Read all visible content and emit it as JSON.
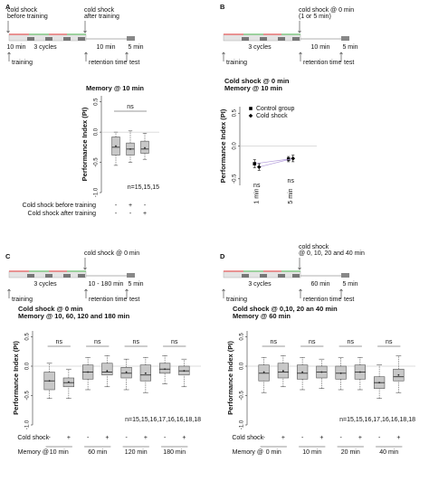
{
  "panel_labels": [
    "A",
    "B",
    "C",
    "D"
  ],
  "timelines": [
    {
      "shocks": [
        [
          "cold shock",
          "before training"
        ],
        [
          "cold shock",
          "after training"
        ]
      ],
      "durations": [
        "10 min",
        "3 cycles",
        "10 min",
        "5 min"
      ],
      "phases": [
        "training",
        "retention time",
        "test"
      ]
    },
    {
      "shocks": [
        [
          "cold shock @ 0 min",
          "(1 or 5 min)"
        ]
      ],
      "durations": [
        "3 cycles",
        "10 min",
        "5 min"
      ],
      "phases": [
        "training",
        "retention time",
        "test"
      ]
    },
    {
      "shocks": [
        [
          "cold shock @ 0 min"
        ]
      ],
      "durations": [
        "3 cycles",
        "10 - 180 min",
        "5 min"
      ],
      "phases": [
        "training",
        "retention time",
        "test"
      ]
    },
    {
      "shocks": [
        [
          "cold shock",
          "@ 0, 10, 20 and 40 min"
        ]
      ],
      "durations": [
        "3 cycles",
        "60 min",
        "5 min"
      ],
      "phases": [
        "training",
        "retention time",
        "test"
      ]
    }
  ],
  "chart_data": [
    {
      "type": "box",
      "title": [
        "Memory @ 10 min"
      ],
      "y_label": "Performance Index (PI)",
      "color": "#c8c8c8",
      "ylim": [
        -1,
        0.6
      ],
      "yticks": [
        {
          "value": -1,
          "label": "-1.0"
        },
        -0.5,
        {
          "value": 0,
          "label": "0.0"
        },
        0.5
      ],
      "boxes": [
        {
          "min": -0.55,
          "q1": -0.38,
          "median": -0.25,
          "q3": -0.08,
          "max": 0.0,
          "mean": -0.23
        },
        {
          "min": -0.5,
          "q1": -0.38,
          "median": -0.28,
          "q3": -0.18,
          "max": 0.02,
          "mean": -0.28
        },
        {
          "min": -0.45,
          "q1": -0.35,
          "median": -0.28,
          "q3": -0.15,
          "max": -0.02,
          "mean": -0.26
        }
      ],
      "significance": [
        "ns"
      ],
      "n_label": "n=15,15,15",
      "conditions": [
        {
          "name": "Cold shock before training",
          "values": [
            "-",
            "+",
            "-"
          ]
        },
        {
          "name": "Cold shock after training",
          "values": [
            "-",
            "-",
            "+"
          ]
        }
      ]
    },
    {
      "type": "line",
      "title": [
        "Cold shock @ 0 min",
        "Memory @ 10 min"
      ],
      "y_label": "Performance Index (PI)",
      "line_color": "#b39ddb",
      "ylim": [
        -0.6,
        0.6
      ],
      "yticks": [
        -0.5,
        {
          "value": 0,
          "label": "0.0"
        },
        0.5
      ],
      "categories": [
        "1 min",
        "5 min"
      ],
      "series": [
        {
          "name": "Control group",
          "color": "#000000",
          "marker": "square",
          "values": [
            -0.27,
            -0.2
          ],
          "errors": [
            0.06,
            0.04
          ]
        },
        {
          "name": "Cold shock",
          "color": "#000000",
          "marker": "diamond",
          "values": [
            -0.32,
            -0.19
          ],
          "errors": [
            0.05,
            0.05
          ]
        }
      ],
      "significance": [
        "ns",
        "ns"
      ]
    },
    {
      "type": "box",
      "title": [
        "Cold shock @ 0 min",
        "Memory @ 10, 60, 120 and 180 min"
      ],
      "y_label": "Performance Index (PI)",
      "color": "#c8c8c8",
      "ylim": [
        -1,
        0.6
      ],
      "yticks": [
        {
          "value": -1,
          "label": "-1.0"
        },
        -0.5,
        {
          "value": 0,
          "label": "0.0"
        },
        0.5
      ],
      "boxes": [
        {
          "min": -0.55,
          "q1": -0.4,
          "median": -0.25,
          "q3": -0.1,
          "max": 0.05,
          "mean": -0.25
        },
        {
          "min": -0.55,
          "q1": -0.35,
          "median": -0.28,
          "q3": -0.2,
          "max": -0.05,
          "mean": -0.27
        },
        {
          "min": -0.4,
          "q1": -0.22,
          "median": -0.1,
          "q3": 0.02,
          "max": 0.15,
          "mean": -0.1
        },
        {
          "min": -0.35,
          "q1": -0.15,
          "median": -0.1,
          "q3": 0.05,
          "max": 0.18,
          "mean": -0.08
        },
        {
          "min": -0.4,
          "q1": -0.2,
          "median": -0.12,
          "q3": -0.02,
          "max": 0.12,
          "mean": -0.1
        },
        {
          "min": -0.45,
          "q1": -0.25,
          "median": -0.15,
          "q3": 0.02,
          "max": 0.15,
          "mean": -0.12
        },
        {
          "min": -0.3,
          "q1": -0.12,
          "median": -0.05,
          "q3": 0.05,
          "max": 0.18,
          "mean": -0.05
        },
        {
          "min": -0.35,
          "q1": -0.15,
          "median": -0.08,
          "q3": 0.0,
          "max": 0.12,
          "mean": -0.08
        }
      ],
      "significance": [
        "ns",
        "ns",
        "ns",
        "ns"
      ],
      "n_label": "n=15,15,16,17,16,16,18,18",
      "conditions": [
        {
          "name": "Cold shock",
          "values": [
            "-",
            "+",
            "-",
            "+",
            "-",
            "+",
            "-",
            "+"
          ]
        }
      ],
      "group_label": "Memory @",
      "groups": [
        "10 min",
        "60 min",
        "120 min",
        "180 min"
      ]
    },
    {
      "type": "box",
      "title": [
        "Cold shock @ 0,10, 20 an 40 min",
        "Memory @ 60 min"
      ],
      "y_label": "Performance Index (PI)",
      "color": "#c8c8c8",
      "ylim": [
        -1,
        0.6
      ],
      "yticks": [
        {
          "value": -1,
          "label": "-1.0"
        },
        -0.5,
        {
          "value": 0,
          "label": "0.0"
        },
        0.5
      ],
      "boxes": [
        {
          "min": -0.45,
          "q1": -0.25,
          "median": -0.12,
          "q3": 0.02,
          "max": 0.15,
          "mean": -0.1
        },
        {
          "min": -0.35,
          "q1": -0.2,
          "median": -0.1,
          "q3": 0.05,
          "max": 0.18,
          "mean": -0.08
        },
        {
          "min": -0.4,
          "q1": -0.22,
          "median": -0.12,
          "q3": 0.02,
          "max": 0.15,
          "mean": -0.1
        },
        {
          "min": -0.38,
          "q1": -0.2,
          "median": -0.1,
          "q3": 0.0,
          "max": 0.12,
          "mean": -0.1
        },
        {
          "min": -0.4,
          "q1": -0.22,
          "median": -0.12,
          "q3": 0.0,
          "max": 0.15,
          "mean": -0.12
        },
        {
          "min": -0.4,
          "q1": -0.22,
          "median": -0.1,
          "q3": 0.02,
          "max": 0.15,
          "mean": -0.1
        },
        {
          "min": -0.55,
          "q1": -0.38,
          "median": -0.28,
          "q3": -0.18,
          "max": 0.02,
          "mean": -0.28
        },
        {
          "min": -0.45,
          "q1": -0.25,
          "median": -0.18,
          "q3": -0.05,
          "max": 0.18,
          "mean": -0.15
        }
      ],
      "significance": [
        "ns",
        "ns",
        "ns",
        "ns"
      ],
      "n_label": "n=15,15,16,17,16,16,18,18",
      "conditions": [
        {
          "name": "Cold shock",
          "values": [
            "-",
            "+",
            "-",
            "+",
            "-",
            "+",
            "-",
            "+"
          ]
        }
      ],
      "group_label": "Memory @",
      "groups": [
        "0 min",
        "10 min",
        "20 min",
        "40 min"
      ]
    }
  ]
}
